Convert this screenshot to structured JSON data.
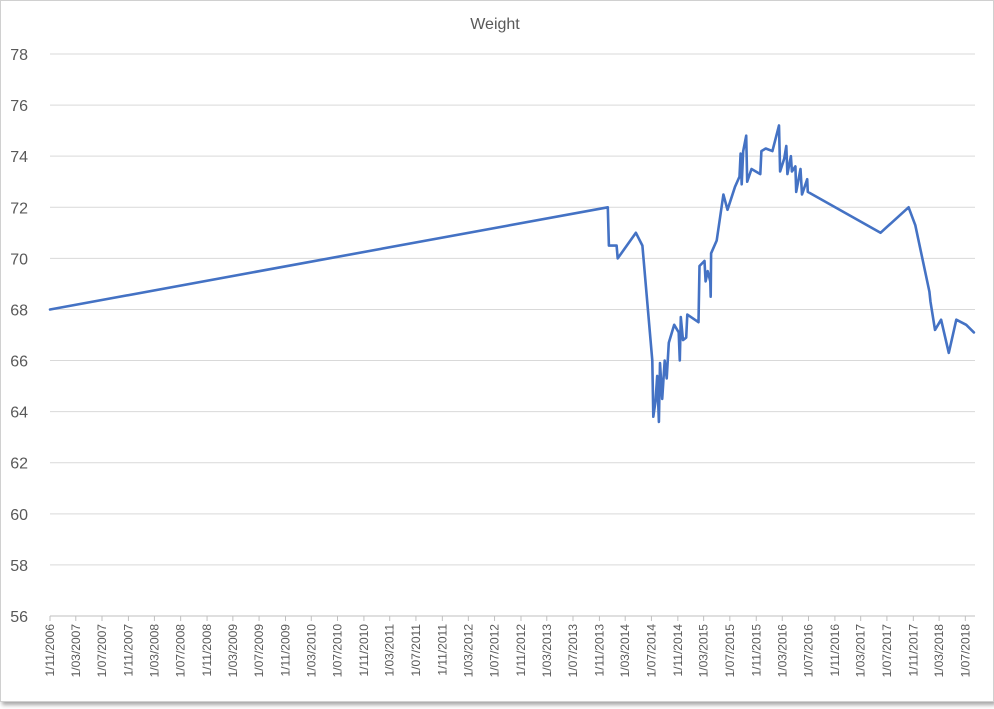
{
  "chart_data": {
    "type": "line",
    "title": "Weight",
    "xlabel": "",
    "ylabel": "",
    "ylim": [
      56,
      78
    ],
    "yticks": [
      56,
      58,
      60,
      62,
      64,
      66,
      68,
      70,
      72,
      74,
      76,
      78
    ],
    "xlim": [
      "2006-11-01",
      "2018-08-15"
    ],
    "x_tick_labels": [
      "1/11/2006",
      "1/03/2007",
      "1/07/2007",
      "1/11/2007",
      "1/03/2008",
      "1/07/2008",
      "1/11/2008",
      "1/03/2009",
      "1/07/2009",
      "1/11/2009",
      "1/03/2010",
      "1/07/2010",
      "1/11/2010",
      "1/03/2011",
      "1/07/2011",
      "1/11/2011",
      "1/03/2012",
      "1/07/2012",
      "1/11/2012",
      "1/03/2013",
      "1/07/2013",
      "1/11/2013",
      "1/03/2014",
      "1/07/2014",
      "1/11/2014",
      "1/03/2015",
      "1/07/2015",
      "1/11/2015",
      "1/03/2016",
      "1/07/2016",
      "1/11/2016",
      "1/03/2017",
      "1/07/2017",
      "1/11/2017",
      "1/03/2018",
      "1/07/2018"
    ],
    "grid": true,
    "legend": "none",
    "series": [
      {
        "color": "#4472c4",
        "points": [
          [
            "2006-11-01",
            68.0
          ],
          [
            "2013-12-10",
            72.0
          ],
          [
            "2013-12-15",
            70.5
          ],
          [
            "2014-01-20",
            70.5
          ],
          [
            "2014-01-25",
            70.0
          ],
          [
            "2014-04-20",
            71.0
          ],
          [
            "2014-05-20",
            70.5
          ],
          [
            "2014-07-05",
            66.0
          ],
          [
            "2014-07-10",
            63.8
          ],
          [
            "2014-07-20",
            64.4
          ],
          [
            "2014-07-28",
            65.4
          ],
          [
            "2014-08-05",
            63.6
          ],
          [
            "2014-08-10",
            65.9
          ],
          [
            "2014-08-20",
            64.5
          ],
          [
            "2014-09-01",
            66.0
          ],
          [
            "2014-09-10",
            65.3
          ],
          [
            "2014-09-20",
            66.7
          ],
          [
            "2014-10-15",
            67.4
          ],
          [
            "2014-11-05",
            67.1
          ],
          [
            "2014-11-10",
            66.0
          ],
          [
            "2014-11-15",
            67.7
          ],
          [
            "2014-11-25",
            66.8
          ],
          [
            "2014-12-10",
            66.9
          ],
          [
            "2014-12-15",
            67.8
          ],
          [
            "2015-02-05",
            67.5
          ],
          [
            "2015-02-10",
            69.7
          ],
          [
            "2015-03-05",
            69.9
          ],
          [
            "2015-03-10",
            69.1
          ],
          [
            "2015-03-20",
            69.5
          ],
          [
            "2015-04-01",
            69.1
          ],
          [
            "2015-04-03",
            68.5
          ],
          [
            "2015-04-05",
            70.2
          ],
          [
            "2015-05-01",
            70.7
          ],
          [
            "2015-06-01",
            72.5
          ],
          [
            "2015-06-20",
            71.9
          ],
          [
            "2015-07-25",
            72.8
          ],
          [
            "2015-08-15",
            73.2
          ],
          [
            "2015-08-20",
            74.1
          ],
          [
            "2015-08-25",
            72.9
          ],
          [
            "2015-09-01",
            74.2
          ],
          [
            "2015-09-15",
            74.8
          ],
          [
            "2015-09-20",
            73.0
          ],
          [
            "2015-10-10",
            73.5
          ],
          [
            "2015-11-20",
            73.3
          ],
          [
            "2015-11-25",
            74.2
          ],
          [
            "2015-12-15",
            74.3
          ],
          [
            "2016-01-15",
            74.2
          ],
          [
            "2016-02-15",
            75.2
          ],
          [
            "2016-02-20",
            73.4
          ],
          [
            "2016-03-10",
            73.9
          ],
          [
            "2016-03-20",
            74.4
          ],
          [
            "2016-03-25",
            73.3
          ],
          [
            "2016-04-10",
            74.0
          ],
          [
            "2016-04-15",
            73.4
          ],
          [
            "2016-05-01",
            73.6
          ],
          [
            "2016-05-05",
            72.6
          ],
          [
            "2016-05-25",
            73.5
          ],
          [
            "2016-06-01",
            72.5
          ],
          [
            "2016-06-05",
            72.6
          ],
          [
            "2016-06-25",
            73.1
          ],
          [
            "2016-06-28",
            72.6
          ],
          [
            "2017-06-01",
            71.0
          ],
          [
            "2017-10-10",
            72.0
          ],
          [
            "2017-11-10",
            71.3
          ],
          [
            "2018-01-15",
            68.7
          ],
          [
            "2018-01-20",
            68.3
          ],
          [
            "2018-02-10",
            67.2
          ],
          [
            "2018-03-10",
            67.6
          ],
          [
            "2018-04-15",
            66.3
          ],
          [
            "2018-05-20",
            67.6
          ],
          [
            "2018-07-05",
            67.4
          ],
          [
            "2018-08-10",
            67.1
          ]
        ]
      }
    ]
  }
}
